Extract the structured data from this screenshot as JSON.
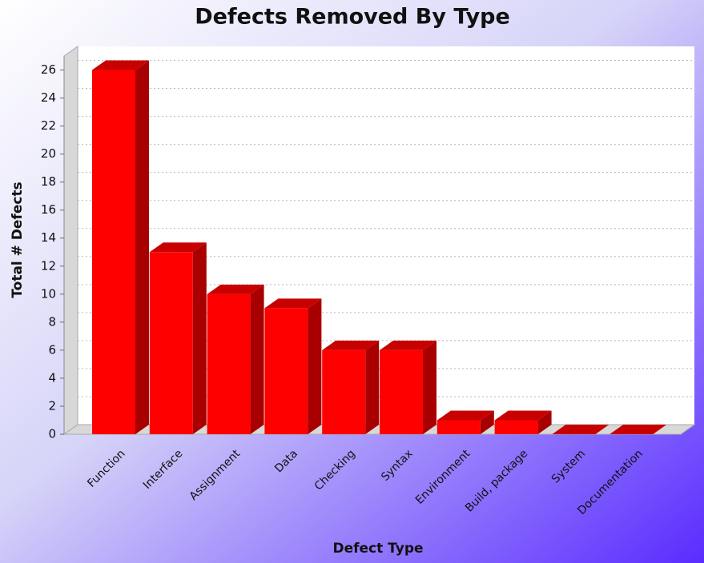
{
  "chart_data": {
    "type": "bar3d",
    "title": "Defects Removed By Type",
    "x_label": "Defect Type",
    "y_label": "Total # Defects",
    "categories": [
      "Function",
      "Interface",
      "Assignment",
      "Data",
      "Checking",
      "Syntax",
      "Environment",
      "Build, package",
      "System",
      "Documentation"
    ],
    "values": [
      26,
      13,
      10,
      9,
      6,
      6,
      1,
      1,
      0,
      0
    ],
    "color": "#ff0000",
    "ylim": [
      0,
      27
    ],
    "yticks": [
      0,
      2,
      4,
      6,
      8,
      10,
      12,
      14,
      16,
      18,
      20,
      22,
      24,
      26
    ],
    "grid": true
  }
}
